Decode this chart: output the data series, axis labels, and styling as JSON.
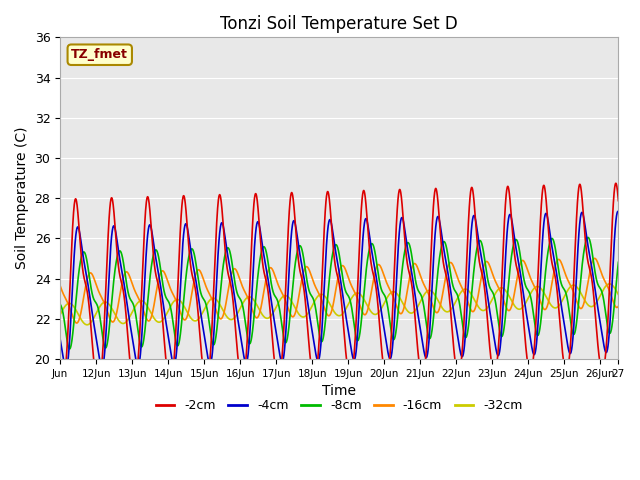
{
  "title": "Tonzi Soil Temperature Set D",
  "xlabel": "Time",
  "ylabel": "Soil Temperature (C)",
  "ylim": [
    20,
    36
  ],
  "xlim": [
    0,
    15.5
  ],
  "annotation": "TZ_fmet",
  "background_color": "#e8e8e8",
  "series": {
    "-2cm": {
      "color": "#dd0000",
      "linewidth": 1.2
    },
    "-4cm": {
      "color": "#0000cc",
      "linewidth": 1.2
    },
    "-8cm": {
      "color": "#00bb00",
      "linewidth": 1.2
    },
    "-16cm": {
      "color": "#ff8800",
      "linewidth": 1.2
    },
    "-32cm": {
      "color": "#cccc00",
      "linewidth": 1.2
    }
  },
  "xtick_labels": [
    "Jun",
    "12Jun",
    "13Jun",
    "14Jun",
    "15Jun",
    "16Jun",
    "17Jun",
    "18Jun",
    "19Jun",
    "20Jun",
    "21Jun",
    "22Jun",
    "23Jun",
    "24Jun",
    "25Jun",
    "26Jun",
    "27"
  ],
  "xtick_positions": [
    0,
    1,
    2,
    3,
    4,
    5,
    6,
    7,
    8,
    9,
    10,
    11,
    12,
    13,
    14,
    15,
    15.5
  ],
  "ytick_positions": [
    20,
    22,
    24,
    26,
    28,
    30,
    32,
    34,
    36
  ],
  "legend_labels": [
    "-2cm",
    "-4cm",
    "-8cm",
    "-16cm",
    "-32cm"
  ],
  "legend_colors": [
    "#dd0000",
    "#0000cc",
    "#00bb00",
    "#ff8800",
    "#cccc00"
  ]
}
